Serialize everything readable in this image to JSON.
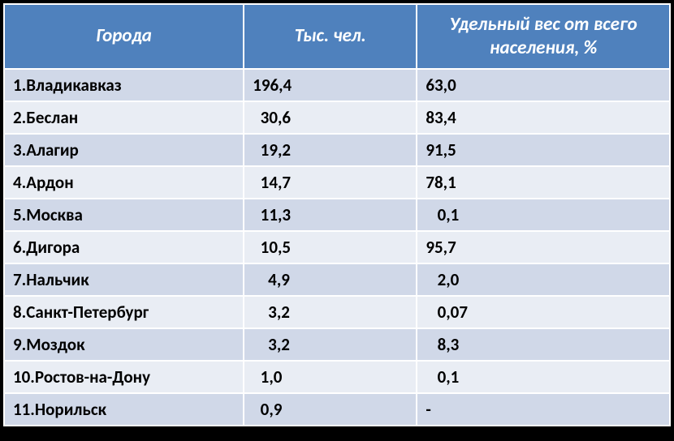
{
  "table": {
    "type": "table",
    "columns": [
      {
        "key": "city",
        "label": "Города",
        "width_pct": 36
      },
      {
        "key": "population",
        "label": "Тыс. чел.",
        "width_pct": 26
      },
      {
        "key": "share",
        "label": "Удельный вес от всего населения, %",
        "width_pct": 38
      }
    ],
    "rows": [
      {
        "city": "1.Владикавказ",
        "population": "196,4",
        "share": "63,0"
      },
      {
        "city": "2.Беслан",
        "population": "  30,6",
        "share": "83,4"
      },
      {
        "city": "3.Алагир",
        "population": "  19,2",
        "share": "91,5"
      },
      {
        "city": "4.Ардон",
        "population": "  14,7",
        "share": "78,1"
      },
      {
        "city": "5.Москва",
        "population": "  11,3",
        "share": "   0,1"
      },
      {
        "city": "6.Дигора",
        "population": "  10,5",
        "share": "95,7"
      },
      {
        "city": "7.Нальчик",
        "population": "    4,9",
        "share": "   2,0"
      },
      {
        "city": "8.Санкт-Петербург",
        "population": "    3,2",
        "share": "   0,07"
      },
      {
        "city": "9.Моздок",
        "population": "    3,2",
        "share": "   8,3"
      },
      {
        "city": "10.Ростов-на-Дону",
        "population": "  1,0",
        "share": "   0,1"
      },
      {
        "city": "11.Норильск",
        "population": "  0,9",
        "share": "-"
      }
    ],
    "header_bg": "#4f81bd",
    "header_text_color": "#ffffff",
    "row_bg_odd": "#d0d8e8",
    "row_bg_even": "#e9edf4",
    "border_color": "#ffffff",
    "font_family": "Calibri",
    "header_fontsize_pt": 17,
    "cell_fontsize_pt": 16,
    "header_italic": true,
    "cell_bold": true
  }
}
